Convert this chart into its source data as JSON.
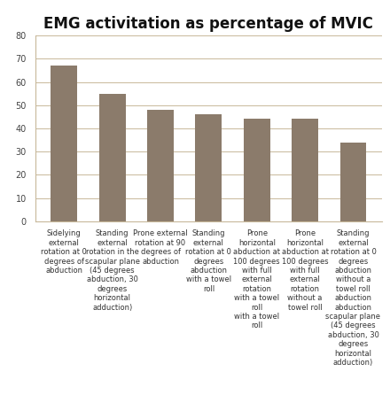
{
  "title": "EMG activitation as percentage of MVIC",
  "values": [
    67,
    55,
    48,
    46,
    44,
    44,
    34
  ],
  "bar_color": "#8B7B6B",
  "ylim": [
    0,
    80
  ],
  "yticks": [
    0,
    10,
    20,
    30,
    40,
    50,
    60,
    70,
    80
  ],
  "labels": [
    "Sidelying\nexternal\nrotation at 0\ndegrees of\nabduction",
    "Standing\nexternal\nrotation in the\nscapular plane\n(45 degrees\nabduction, 30\ndegrees\nhorizontal\nadduction)",
    "Prone external\nrotation at 90\ndegrees of\nabduction",
    "Standing\nexternal\nrotation at 0\ndegrees\nabduction\nwith a towel\nroll",
    "Prone\nhorizontal\nabduction at\n100 degrees\nwith full\nexternal\nrotation\nwith a towel\nroll\nwith a towel\nroll",
    "Prone\nhorizontal\nabduction at\n100 degrees\nwith full\nexternal\nrotation\nwithout a\ntowel roll",
    "Standing\nexternal\nrotation at 0\ndegrees\nabduction\nwithout a\ntowel roll\nabduction\nabduction\nscapular plane\n(45 degrees\nabduction, 30\ndegrees\nhorizontal\nadduction)"
  ],
  "background_color": "#ffffff",
  "plot_bg_color": "#ffffff",
  "grid_color": "#c8b89a",
  "title_fontsize": 12,
  "tick_fontsize": 7,
  "label_fontsize": 6.0,
  "bar_width": 0.55
}
